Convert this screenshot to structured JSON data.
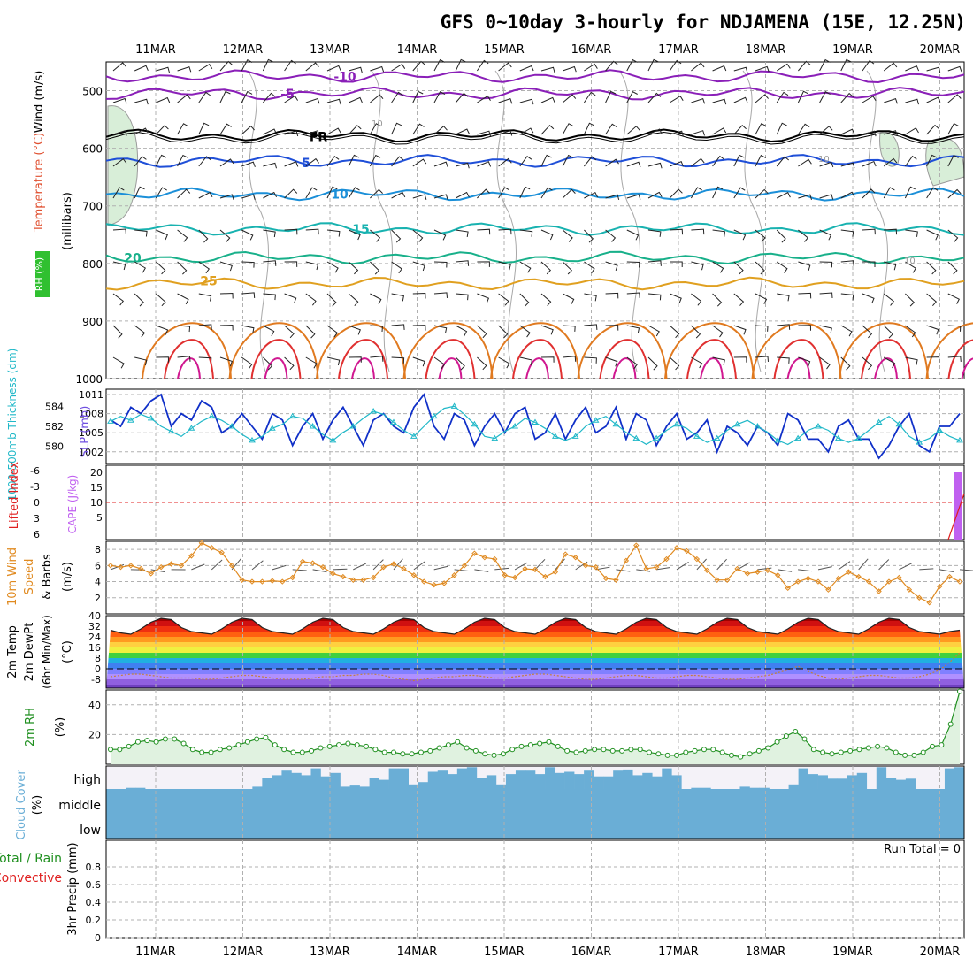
{
  "title": "GFS 0~10day 3-hourly for NDJAMENA (15E, 12.25N)",
  "dates": [
    "11MAR",
    "12MAR",
    "13MAR",
    "14MAR",
    "15MAR",
    "16MAR",
    "17MAR",
    "18MAR",
    "19MAR",
    "20MAR"
  ],
  "colors": {
    "grid": "#b0b0b0",
    "frame": "#000000",
    "temp_m10": "#8a1fb8",
    "temp_m5": "#8a1fb8",
    "temp_0": "#000000",
    "temp_5": "#1f4fd8",
    "temp_10": "#1b8fd8",
    "temp_15": "#18b2b0",
    "temp_20": "#18b08a",
    "temp_25": "#e0a020",
    "temp_30": "#e07a20",
    "temp_35": "#e03030",
    "temp_40": "#d01890",
    "slp": "#1030c8",
    "thickness": "#20b8c8",
    "wind": "#e08a20",
    "rh": "#209020",
    "cloud": "#6aaed6",
    "cape": "#c060f0",
    "li": "#e02020"
  },
  "chart_data": [
    {
      "type": "contour",
      "name": "upper-air",
      "ylabel_parts": [
        "Wind (m/s)",
        "Temperature (°C)",
        "RH (%)",
        "(millibars)"
      ],
      "yticks": [
        500,
        600,
        700,
        800,
        900,
        1000
      ],
      "ylim": [
        450,
        1000
      ],
      "isotherm_labels": [
        {
          "label": "-10",
          "level": 475
        },
        {
          "label": "-5",
          "level": 505
        },
        {
          "label": "FR",
          "level": 580
        },
        {
          "label": "5",
          "level": 625
        },
        {
          "label": "10",
          "level": 680
        },
        {
          "label": "15",
          "level": 740
        },
        {
          "label": "20",
          "level": 790
        },
        {
          "label": "25",
          "level": 830
        }
      ],
      "rh_labels": [
        "10",
        "10",
        "10"
      ]
    },
    {
      "type": "line",
      "name": "slp-thickness",
      "ylabel_left": "1000-500mb Thickness (dm)",
      "ylabel_right": "SLP (mb)",
      "left_ticks": [
        580,
        582,
        584
      ],
      "right_ticks": [
        1002,
        1005,
        1008,
        1011
      ],
      "slp": [
        1007,
        1006,
        1009,
        1008,
        1010,
        1011,
        1006,
        1008,
        1007,
        1010,
        1009,
        1005,
        1006,
        1008,
        1006,
        1004,
        1008,
        1007,
        1003,
        1006,
        1008,
        1004,
        1007,
        1009,
        1006,
        1003,
        1007,
        1008,
        1006,
        1005,
        1009,
        1011,
        1006,
        1004,
        1008,
        1007,
        1003,
        1006,
        1008,
        1005,
        1008,
        1009,
        1004,
        1005,
        1008,
        1004,
        1007,
        1009,
        1005,
        1006,
        1009,
        1004,
        1008,
        1007,
        1003,
        1006,
        1008,
        1004,
        1005,
        1007,
        1002,
        1006,
        1005,
        1003,
        1006,
        1005,
        1003,
        1008,
        1007,
        1004,
        1004,
        1002,
        1006,
        1007,
        1004,
        1004,
        1001,
        1003,
        1006,
        1008,
        1003,
        1002,
        1006,
        1006,
        1008
      ],
      "thickness": [
        582.5,
        583.0,
        582.6,
        583.2,
        582.8,
        582.0,
        581.5,
        581.0,
        581.8,
        582.5,
        583.0,
        582.6,
        582.0,
        581.2,
        580.6,
        581.0,
        581.8,
        582.2,
        583.0,
        582.8,
        582.0,
        581.2,
        580.6,
        581.4,
        582.0,
        582.8,
        583.5,
        583.2,
        582.4,
        581.6,
        581.0,
        582.0,
        583.0,
        583.8,
        584.0,
        583.2,
        582.2,
        581.0,
        580.8,
        581.5,
        582.0,
        582.8,
        582.4,
        581.8,
        581.0,
        580.6,
        581.0,
        582.0,
        582.6,
        583.0,
        582.2,
        581.4,
        580.8,
        580.2,
        580.8,
        581.6,
        582.2,
        581.8,
        581.0,
        580.4,
        580.8,
        581.6,
        582.2,
        582.6,
        582.0,
        581.4,
        580.6,
        580.2,
        580.8,
        581.6,
        582.0,
        581.6,
        580.8,
        580.4,
        580.8,
        581.6,
        582.4,
        583.0,
        582.2,
        581.0,
        580.4,
        580.8,
        581.6,
        581.0,
        580.6
      ],
      "markers_label": "△"
    },
    {
      "type": "bar",
      "name": "cape-li",
      "ylabel_left": "Lifted Index",
      "ylabel_right": "CAPE (J/kg)",
      "li_ticks": [
        "-6",
        "-3",
        "0",
        "3",
        "6"
      ],
      "cape_ticks": [
        5,
        10,
        15,
        20
      ],
      "cape_last": 20
    },
    {
      "type": "line",
      "name": "wind10m",
      "ylabel": "10m Wind Speed & Barbs (m/s)",
      "ylabel_parts": [
        "10m Wind",
        "Speed",
        "& Barbs",
        "(m/s)"
      ],
      "yticks": [
        2,
        4,
        6,
        8
      ],
      "ylim": [
        0,
        9
      ],
      "values": [
        6.0,
        5.8,
        6.0,
        5.6,
        5.0,
        5.8,
        6.2,
        6.0,
        7.2,
        8.8,
        8.2,
        7.6,
        6.0,
        4.2,
        4.0,
        4.0,
        4.1,
        4.0,
        4.5,
        6.5,
        6.3,
        5.8,
        5.0,
        4.6,
        4.2,
        4.2,
        4.5,
        5.8,
        6.2,
        5.6,
        4.8,
        4.0,
        3.6,
        3.8,
        4.8,
        6.0,
        7.5,
        7.0,
        6.8,
        4.8,
        4.5,
        5.6,
        5.5,
        4.6,
        5.2,
        7.4,
        7.0,
        6.0,
        5.8,
        4.4,
        4.2,
        6.6,
        8.5,
        5.6,
        5.8,
        6.8,
        8.2,
        7.8,
        6.8,
        5.4,
        4.2,
        4.2,
        5.6,
        5.0,
        5.2,
        5.4,
        4.8,
        3.2,
        4.0,
        4.4,
        4.0,
        3.0,
        4.4,
        5.2,
        4.6,
        4.0,
        2.8,
        4.0,
        4.5,
        3.0,
        2.0,
        1.4,
        3.4,
        4.6,
        4.0
      ]
    },
    {
      "type": "area",
      "name": "temp2m",
      "ylabel_parts": [
        "2m Temp",
        "2m DewPt",
        "(6hr Min/Max)",
        "(°C)"
      ],
      "yticks": [
        "40",
        "32",
        "24",
        "16",
        "8",
        "0",
        "-8"
      ],
      "temp": [
        29,
        27,
        26,
        30,
        35,
        38,
        37,
        31,
        28,
        27,
        26,
        30,
        35,
        38,
        37,
        31,
        28,
        27,
        26,
        30,
        35,
        38,
        37,
        31,
        28,
        27,
        26,
        30,
        35,
        38,
        37,
        31,
        28,
        27,
        26,
        30,
        35,
        38,
        37,
        31,
        28,
        27,
        26,
        30,
        35,
        38,
        37,
        31,
        28,
        27,
        26,
        30,
        35,
        38,
        37,
        31,
        28,
        27,
        26,
        30,
        35,
        38,
        37,
        31,
        28,
        27,
        26,
        30,
        35,
        38,
        37,
        31,
        28,
        27,
        26,
        30,
        35,
        38,
        37,
        31,
        28,
        27,
        26,
        28,
        29
      ],
      "dewpoint": [
        -6,
        -5,
        -4,
        -4,
        -5,
        -6,
        -7,
        -7,
        -7,
        -8,
        -8,
        -7,
        -6,
        -5,
        -5,
        -6,
        -7,
        -8,
        -8,
        -8,
        -7,
        -6,
        -6,
        -5,
        -5,
        -4,
        -4,
        -5,
        -7,
        -8,
        -9,
        -8,
        -7,
        -6,
        -6,
        -5,
        -5,
        -6,
        -7,
        -7,
        -6,
        -5,
        -4,
        -4,
        -5,
        -6,
        -7,
        -8,
        -8,
        -7,
        -6,
        -5,
        -5,
        -6,
        -7,
        -7,
        -6,
        -5,
        -5,
        -6,
        -7,
        -8,
        -8,
        -7,
        -6,
        -5,
        -3,
        -1,
        2,
        -2,
        -5,
        -7,
        -8,
        -7,
        -6,
        -5,
        -5,
        -6,
        -7,
        -7,
        -6,
        -4,
        -1,
        5,
        12
      ]
    },
    {
      "type": "area",
      "name": "rh2m",
      "ylabel": "2m RH (%)",
      "yticks": [
        20,
        40
      ],
      "ylim": [
        0,
        50
      ],
      "values": [
        10,
        10,
        12,
        15,
        16,
        15,
        17,
        17,
        14,
        10,
        8,
        8,
        10,
        11,
        13,
        15,
        17,
        18,
        13,
        10,
        8,
        8,
        9,
        11,
        12,
        13,
        14,
        13,
        12,
        10,
        8,
        8,
        7,
        7,
        8,
        9,
        11,
        13,
        15,
        11,
        9,
        7,
        6,
        7,
        10,
        12,
        13,
        14,
        15,
        12,
        9,
        8,
        9,
        10,
        10,
        9,
        9,
        10,
        10,
        8,
        7,
        6,
        6,
        8,
        9,
        10,
        10,
        8,
        6,
        5,
        7,
        9,
        11,
        15,
        19,
        22,
        17,
        10,
        8,
        7,
        8,
        9,
        10,
        11,
        12,
        11,
        8,
        6,
        6,
        8,
        12,
        13,
        27,
        49
      ]
    },
    {
      "type": "bar",
      "name": "cloud-cover",
      "ylabel": "Cloud Cover (%)",
      "levels": [
        "high",
        "middle",
        "low"
      ],
      "high": [
        0,
        0,
        5,
        5,
        0,
        0,
        0,
        0,
        0,
        0,
        0,
        0,
        0,
        0,
        0,
        10,
        50,
        60,
        80,
        70,
        60,
        90,
        55,
        70,
        10,
        15,
        10,
        50,
        40,
        90,
        90,
        20,
        30,
        75,
        80,
        65,
        90,
        95,
        50,
        60,
        20,
        65,
        80,
        80,
        65,
        95,
        70,
        75,
        65,
        80,
        55,
        55,
        80,
        85,
        60,
        70,
        55,
        90,
        60,
        0,
        5,
        5,
        0,
        0,
        0,
        10,
        5,
        5,
        0,
        0,
        20,
        90,
        65,
        60,
        45,
        45,
        60,
        70,
        0,
        95,
        50,
        40,
        45,
        0,
        0,
        0,
        90,
        95
      ]
    },
    {
      "type": "bar",
      "name": "precip",
      "ylabel": "3hr Precip (mm)",
      "ylabel_left": "Total / Rain",
      "ylabel_left2": "Convective",
      "yticks": [
        "0",
        "0.2",
        "0.4",
        "0.6",
        "0.8"
      ],
      "run_total": "Run Total = 0"
    }
  ]
}
